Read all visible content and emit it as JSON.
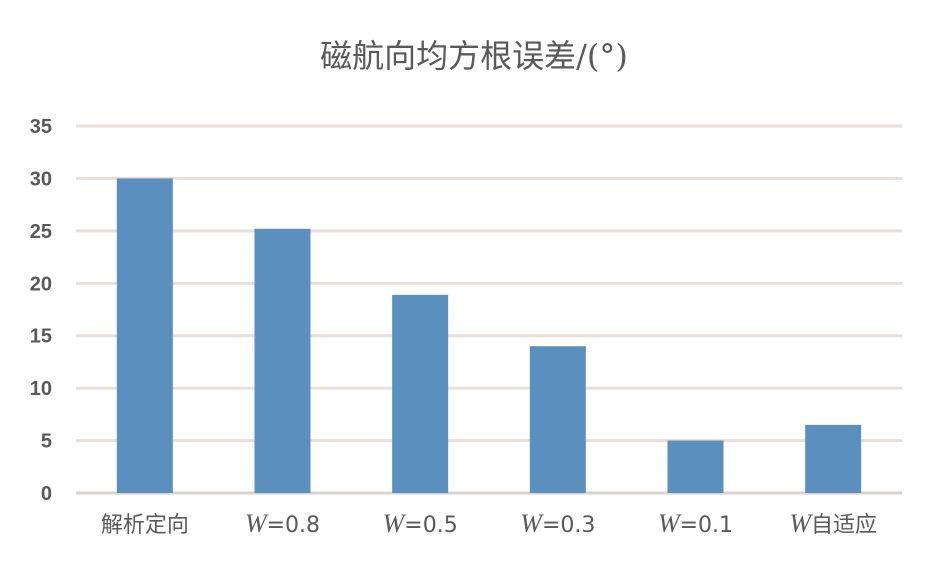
{
  "chart_data": {
    "type": "bar",
    "title": "磁航向均方根误差/(°)",
    "categories": [
      {
        "prefix": "",
        "text": "解析定向"
      },
      {
        "prefix": "W",
        "text": "=0.8"
      },
      {
        "prefix": "W",
        "text": "=0.5"
      },
      {
        "prefix": "W",
        "text": "=0.3"
      },
      {
        "prefix": "W",
        "text": "=0.1"
      },
      {
        "prefix": "W",
        "text": "自适应"
      }
    ],
    "values": [
      30,
      25.2,
      18.9,
      14,
      5,
      6.5
    ],
    "ylim": [
      0,
      35
    ],
    "yticks": [
      "0",
      "5",
      "10",
      "15",
      "20",
      "25",
      "30",
      "35"
    ],
    "grid": true,
    "bar_color": "#5b8fbd",
    "grid_color": "#e9dfd9"
  }
}
